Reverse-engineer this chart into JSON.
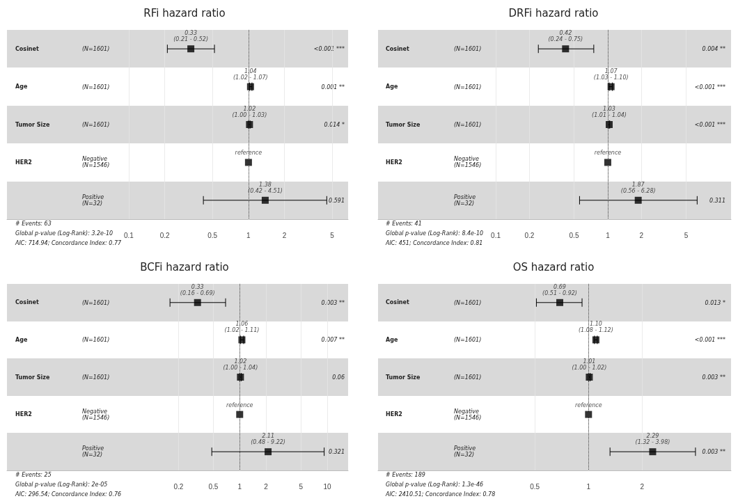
{
  "chart_data": [
    {
      "type": "scatter",
      "title": "RFi hazard ratio",
      "orientation": "horizontal",
      "log": "x",
      "marker": "square",
      "color": "#000000",
      "grid": "x",
      "categories": [
        "Cosinet",
        "Age",
        "Tumor Size",
        "HER2",
        null
      ],
      "y_categories": [
        "(N=1601)",
        "(N=1601)",
        "(N=1601)",
        "Negative\n(N=1546)",
        "Positive\n(N=32)"
      ],
      "y2_categories": [
        "<0.001 ***",
        "0.001 **",
        "0.014 *",
        null,
        "0.591"
      ],
      "values": [
        0.33,
        1.04,
        1.02,
        1,
        1.38
      ],
      "errors": [
        [
          0.21,
          0.52
        ],
        [
          1.02,
          1.07
        ],
        [
          1.0,
          1.03
        ],
        null,
        [
          0.42,
          4.51
        ]
      ],
      "value_labels": [
        "0.33\n(0.21 - 0.52)",
        "1.04\n(1.02 - 1.07)",
        "1.02\n(1.00 - 1.03)",
        "reference",
        "1.38\n(0.42 - 4.51)"
      ],
      "xlim": [
        0.0096,
        6.8
      ],
      "xticks": [
        0.1,
        0.2,
        0.5,
        1,
        2,
        5
      ],
      "ref_lines": [
        {
          "axis": "x",
          "value": 1,
          "line_style": "dotted"
        }
      ],
      "annotations": [
        "# Events: 63",
        "Global p-value (Log-Rank): 3.2e-10",
        "AIC: 714.94; Concordance Index: 0.77"
      ]
    },
    {
      "type": "scatter",
      "title": "DRFi hazard ratio",
      "orientation": "horizontal",
      "log": "x",
      "marker": "square",
      "color": "#000000",
      "grid": "x",
      "categories": [
        "Cosinet",
        "Age",
        "Tumor Size",
        "HER2",
        null
      ],
      "y_categories": [
        "(N=1601)",
        "(N=1601)",
        "(N=1601)",
        "Negative\n(N=1546)",
        "Positive\n(N=32)"
      ],
      "y2_categories": [
        "0.004 **",
        "<0.001 ***",
        "<0.001 ***",
        null,
        "0.311"
      ],
      "values": [
        0.42,
        1.07,
        1.03,
        1,
        1.87
      ],
      "errors": [
        [
          0.24,
          0.75
        ],
        [
          1.03,
          1.1
        ],
        [
          1.01,
          1.04
        ],
        null,
        [
          0.56,
          6.28
        ]
      ],
      "value_labels": [
        "0.42\n(0.24 - 0.75)",
        "1.07\n(1.03 - 1.10)",
        "1.03\n(1.01 - 1.04)",
        "reference",
        "1.87\n(0.56 - 6.28)"
      ],
      "xlim": [
        0.0089,
        12.6
      ],
      "xticks": [
        0.1,
        0.2,
        0.5,
        1,
        2,
        5
      ],
      "ref_lines": [
        {
          "axis": "x",
          "value": 1,
          "line_style": "dotted"
        }
      ],
      "annotations": [
        "# Events: 41",
        "Global p-value (Log-Rank): 8.4e-10",
        "AIC: 451; Concordance Index: 0.81"
      ]
    },
    {
      "type": "scatter",
      "title": "BCFi hazard ratio",
      "orientation": "horizontal",
      "log": "x",
      "marker": "square",
      "color": "#000000",
      "grid": "x",
      "categories": [
        "Cosinet",
        "Age",
        "Tumor Size",
        "HER2",
        null
      ],
      "y_categories": [
        "(N=1601)",
        "(N=1601)",
        "(N=1601)",
        "Negative\n(N=1546)",
        "Positive\n(N=32)"
      ],
      "y2_categories": [
        "0.003 **",
        "0.007 **",
        "0.06",
        null,
        "0.321"
      ],
      "values": [
        0.33,
        1.06,
        1.02,
        1,
        2.11
      ],
      "errors": [
        [
          0.16,
          0.69
        ],
        [
          1.02,
          1.11
        ],
        [
          1.0,
          1.04
        ],
        null,
        [
          0.48,
          9.22
        ]
      ],
      "value_labels": [
        "0.33\n(0.16 - 0.69)",
        "1.06\n(1.02 - 1.11)",
        "1.02\n(1.00 - 1.04)",
        "reference",
        "2.11\n(0.48 - 9.22)"
      ],
      "xlim": [
        0.0022,
        17.3
      ],
      "xticks": [
        0.2,
        0.5,
        1,
        2,
        5,
        10
      ],
      "ref_lines": [
        {
          "axis": "x",
          "value": 1,
          "line_style": "dotted"
        }
      ],
      "annotations": [
        "# Events: 25",
        "Global p-value (Log-Rank): 2e-05",
        "AIC: 296.54; Concordance Index: 0.76"
      ]
    },
    {
      "type": "scatter",
      "title": "OS hazard ratio",
      "orientation": "horizontal",
      "log": "x",
      "marker": "square",
      "color": "#000000",
      "grid": "x",
      "categories": [
        "Cosinet",
        "Age",
        "Tumor Size",
        "HER2",
        null
      ],
      "y_categories": [
        "(N=1601)",
        "(N=1601)",
        "(N=1601)",
        "Negative\n(N=1546)",
        "Positive\n(N=32)"
      ],
      "y2_categories": [
        "0.013 *",
        "<0.001 ***",
        "0.003 **",
        null,
        "0.003 **"
      ],
      "values": [
        0.69,
        1.1,
        1.01,
        1,
        2.29
      ],
      "errors": [
        [
          0.51,
          0.92
        ],
        [
          1.08,
          1.12
        ],
        [
          1.0,
          1.02
        ],
        null,
        [
          1.32,
          3.98
        ]
      ],
      "value_labels": [
        "0.69\n(0.51 - 0.92)",
        "1.10\n(1.08 - 1.12)",
        "1.01\n(1.00 - 1.02)",
        "reference",
        "2.29\n(1.32 - 3.98)"
      ],
      "xlim": [
        0.066,
        6.3
      ],
      "xticks": [
        0.5,
        1,
        2
      ],
      "ref_lines": [
        {
          "axis": "x",
          "value": 1,
          "line_style": "dotted"
        }
      ],
      "annotations": [
        "# Events: 189",
        "Global p-value (Log-Rank): 1.3e-46",
        "AIC: 2410.51; Concordance Index: 0.78"
      ]
    }
  ]
}
